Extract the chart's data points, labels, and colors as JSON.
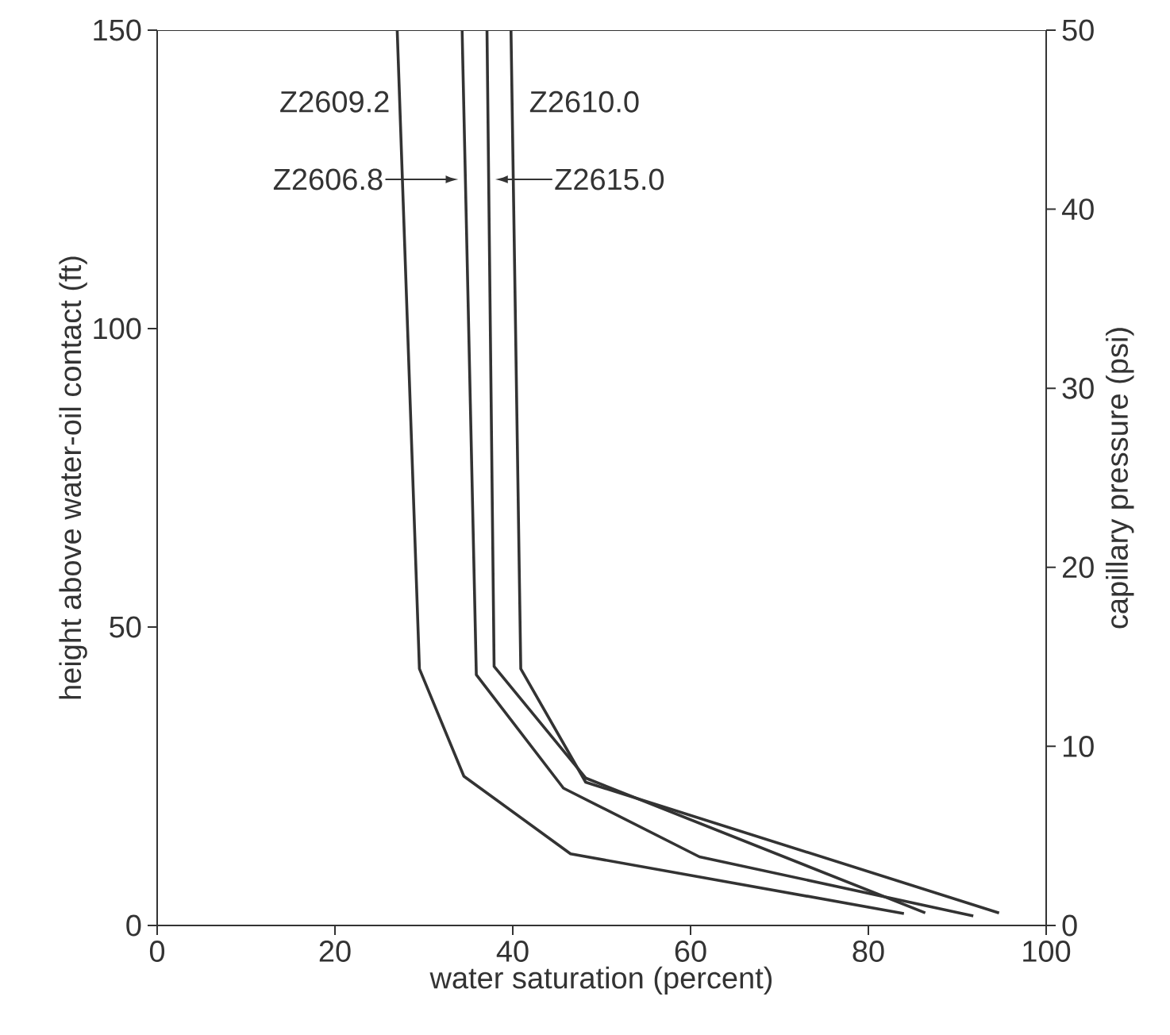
{
  "chart_data": {
    "type": "line",
    "xlabel": "water saturation (percent)",
    "ylabel": "height above water-oil contact (ft)",
    "y2label": "capillary pressure (psi)",
    "xlim": [
      0,
      100
    ],
    "xticks": [
      0,
      20,
      40,
      60,
      80,
      100
    ],
    "ylim": [
      0,
      150
    ],
    "yticks": [
      0,
      50,
      100,
      150
    ],
    "y2lim": [
      0,
      50
    ],
    "y2ticks": [
      0,
      10,
      20,
      30,
      40,
      50
    ],
    "grid": false,
    "marker": "none",
    "line_style": "solid",
    "series": [
      {
        "color": "#333333",
        "x": [
          27,
          29.5,
          34.5,
          46.5,
          84
        ],
        "values": [
          150,
          43,
          25,
          12,
          2
        ]
      },
      {
        "color": "#333333",
        "x": [
          34.3,
          35.9,
          45.7,
          61,
          91.8
        ],
        "values": [
          150,
          42,
          23,
          11.5,
          1.6
        ]
      },
      {
        "color": "#333333",
        "x": [
          37.1,
          37.9,
          48.2,
          86.4
        ],
        "values": [
          150,
          43.4,
          24.7,
          2.1
        ]
      },
      {
        "color": "#333333",
        "x": [
          39.8,
          40.9,
          48.2,
          94.7
        ],
        "values": [
          150,
          43,
          24,
          2.1
        ]
      }
    ],
    "annotations": [
      {
        "text": "Z2609.2",
        "x": 27.3,
        "y": 138
      },
      {
        "text": "Z2610.0",
        "x": 40.2,
        "y": 138
      },
      {
        "text": "Z2606.8",
        "x": 34.6,
        "y": 125
      },
      {
        "text": "Z2615.0",
        "x": 37.3,
        "y": 125
      }
    ]
  }
}
